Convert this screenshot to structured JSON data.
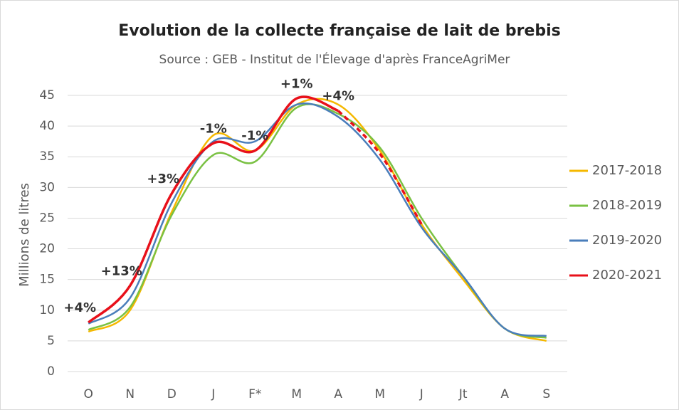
{
  "chart_data": {
    "type": "line",
    "title": "Evolution de la collecte française de lait de brebis",
    "subtitle": "Source : GEB - Institut de l'Élevage d'après  FranceAgriMer",
    "y_label": "Millions de litres",
    "categories": [
      "O",
      "N",
      "D",
      "J",
      "F*",
      "M",
      "A",
      "M",
      "J",
      "Jt",
      "A",
      "S"
    ],
    "ylim": [
      0,
      45
    ],
    "yticks": [
      0,
      5,
      10,
      15,
      20,
      25,
      30,
      35,
      40,
      45
    ],
    "grid": true,
    "legend": "right",
    "series": [
      {
        "name": "2017-2018",
        "color": "#f5b800",
        "values": [
          6.5,
          10,
          26,
          38.5,
          36,
          43.5,
          43.5,
          36,
          24,
          15,
          7,
          5
        ]
      },
      {
        "name": "2018-2019",
        "color": "#7ac143",
        "values": [
          6.8,
          10.5,
          25.5,
          35.3,
          34.2,
          43,
          42,
          36.5,
          25,
          15.5,
          7,
          5.5
        ]
      },
      {
        "name": "2019-2020",
        "color": "#4a7ebb",
        "values": [
          7.8,
          12,
          27.5,
          37.5,
          37.5,
          43.5,
          41.5,
          34.5,
          23.5,
          15.5,
          7,
          5.8
        ]
      },
      {
        "name": "2020-2021",
        "color": "#e8101a",
        "dashed_from": "A",
        "values": [
          8,
          14,
          29,
          37.2,
          36,
          44.5,
          42.5,
          35.5,
          24,
          null,
          null,
          null
        ]
      }
    ],
    "annotations": [
      {
        "text": "+4%",
        "category": "O"
      },
      {
        "text": "+13%",
        "category": "N"
      },
      {
        "text": "+3%",
        "category": "D"
      },
      {
        "text": "-1%",
        "category": "J"
      },
      {
        "text": "-1%",
        "category": "F*"
      },
      {
        "text": "+1%",
        "category": "M"
      },
      {
        "text": "+4%",
        "category": "A"
      }
    ]
  }
}
